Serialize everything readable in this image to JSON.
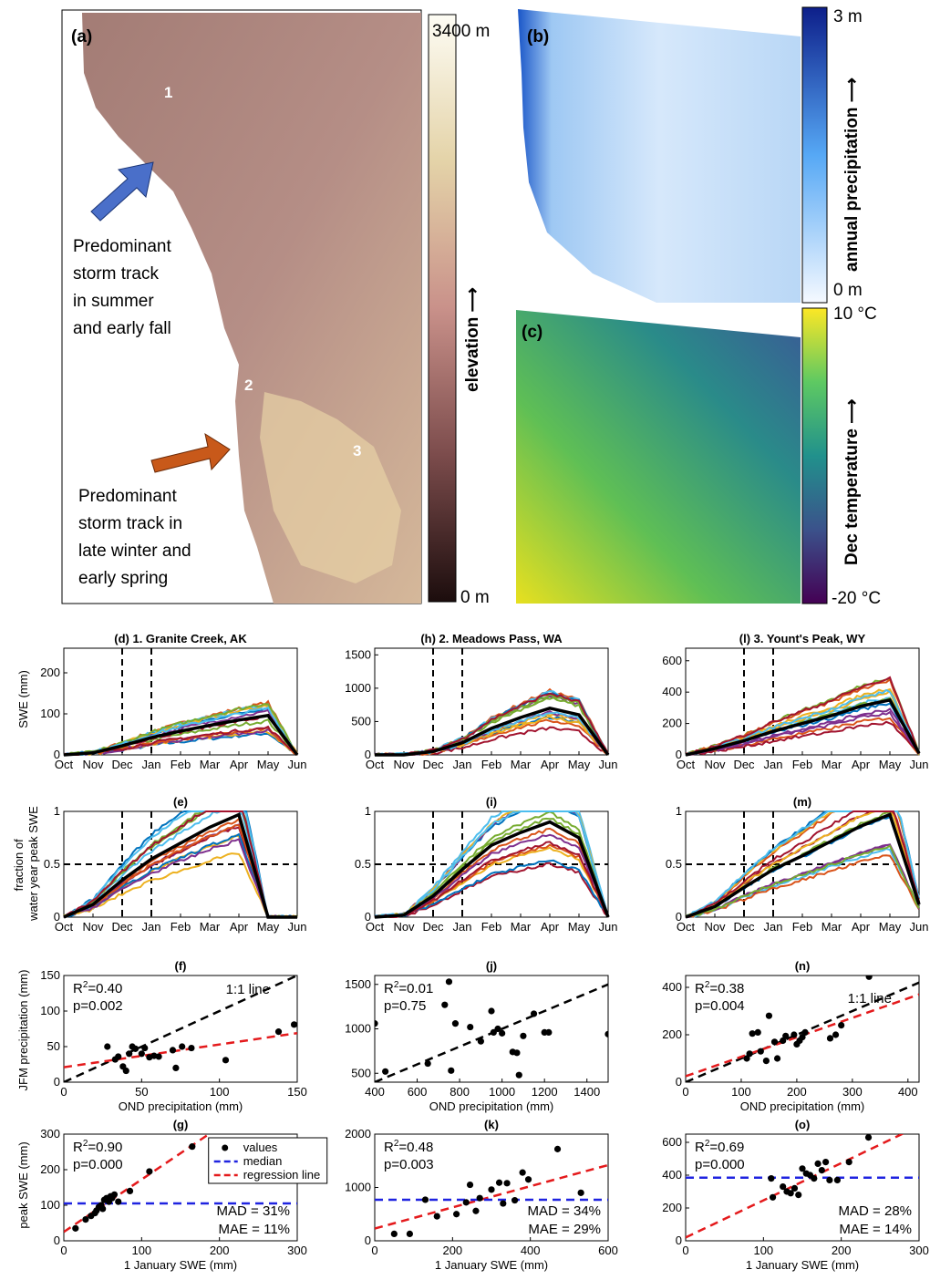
{
  "maps": {
    "a": {
      "label": "(a)",
      "sites": [
        "1",
        "2",
        "3"
      ],
      "summer_text": [
        "Predominant",
        "storm track",
        "in summer",
        "and early fall"
      ],
      "winter_text": [
        "Predominant",
        "storm track in",
        "late winter and",
        "early spring"
      ],
      "colorbar": {
        "top": "3400 m",
        "bottom": "0 m",
        "title": "elevation ⟶"
      }
    },
    "b": {
      "label": "(b)",
      "colorbar": {
        "top": "3 m",
        "bottom": "0 m",
        "title": "annual precipitation ⟶"
      }
    },
    "c": {
      "label": "(c)",
      "colorbar": {
        "top": "10 °C",
        "bottom": "-20 °C",
        "title": "Dec  temperature ⟶"
      }
    }
  },
  "colors": {
    "black": "#000000",
    "red": "#e41a1c",
    "blue": "#1f23e0",
    "series": [
      "#0072bd",
      "#d95319",
      "#edb120",
      "#7e2f8e",
      "#77ac30",
      "#4dbeee",
      "#a2142f"
    ]
  },
  "months": [
    "Oct",
    "Nov",
    "Dec",
    "Jan",
    "Feb",
    "Mar",
    "Apr",
    "May",
    "Jun"
  ],
  "labels": {
    "swe_y": "SWE (mm)",
    "frac_y1": "fraction of",
    "frac_y2": "water year peak SWE",
    "jfm_y": "JFM precipitation (mm)",
    "ond_x": "OND precipitation (mm)",
    "peak_y": "peak SWE (mm)",
    "jan_x": "1 January SWE (mm)"
  },
  "chart_data": [
    {
      "id": "d",
      "type": "line",
      "title": "(d) 1. Granite Creek, AK",
      "ylabel": "SWE (mm)",
      "x_ticks": [
        "Oct",
        "Nov",
        "Dec",
        "Jan",
        "Feb",
        "Mar",
        "Apr",
        "May",
        "Jun"
      ],
      "ylim": [
        0,
        260
      ],
      "y_ticks": [
        0,
        100,
        200
      ],
      "series": [
        {
          "values": [
            0,
            5,
            22,
            42,
            58,
            72,
            85,
            96,
            0
          ]
        }
      ]
    },
    {
      "id": "h",
      "type": "line",
      "title": "(h) 2. Meadows Pass, WA",
      "x_ticks": [
        "Oct",
        "Nov",
        "Dec",
        "Jan",
        "Feb",
        "Mar",
        "Apr",
        "May",
        "Jun"
      ],
      "ylim": [
        0,
        1600
      ],
      "y_ticks": [
        0,
        500,
        1000,
        1500
      ],
      "series": [
        {
          "values": [
            0,
            0,
            50,
            180,
            400,
            560,
            700,
            600,
            0
          ]
        }
      ]
    },
    {
      "id": "l",
      "type": "line",
      "title": "(l) 3. Yount's Peak, WY",
      "x_ticks": [
        "Oct",
        "Nov",
        "Dec",
        "Jan",
        "Feb",
        "Mar",
        "Apr",
        "May",
        "Jun"
      ],
      "ylim": [
        0,
        680
      ],
      "y_ticks": [
        0,
        200,
        400,
        600
      ],
      "series": [
        {
          "values": [
            0,
            40,
            90,
            150,
            200,
            250,
            310,
            350,
            10
          ]
        }
      ]
    },
    {
      "id": "e",
      "type": "line",
      "title": "(e)",
      "ylim": [
        0,
        1
      ],
      "y_ticks": [
        0,
        0.5,
        1
      ],
      "x_ticks": [
        "Oct",
        "Nov",
        "Dec",
        "Jan",
        "Feb",
        "Mar",
        "Apr",
        "May",
        "Jun"
      ],
      "series": [
        {
          "values": [
            0,
            0.12,
            0.35,
            0.55,
            0.7,
            0.85,
            0.97,
            0,
            0
          ]
        }
      ]
    },
    {
      "id": "i",
      "type": "line",
      "title": "(i)",
      "ylim": [
        0,
        1
      ],
      "y_ticks": [
        0,
        0.5,
        1
      ],
      "x_ticks": [
        "Oct",
        "Nov",
        "Dec",
        "Jan",
        "Feb",
        "Mar",
        "Apr",
        "May",
        "Jun"
      ],
      "series": [
        {
          "values": [
            0,
            0.02,
            0.2,
            0.45,
            0.68,
            0.8,
            0.9,
            0.75,
            0
          ]
        }
      ]
    },
    {
      "id": "m",
      "type": "line",
      "title": "(m)",
      "ylim": [
        0,
        1
      ],
      "y_ticks": [
        0,
        0.5,
        1
      ],
      "x_ticks": [
        "Oct",
        "Nov",
        "Dec",
        "Jan",
        "Feb",
        "Mar",
        "Apr",
        "May",
        "Jun"
      ],
      "series": [
        {
          "values": [
            0,
            0.1,
            0.28,
            0.45,
            0.58,
            0.72,
            0.86,
            0.97,
            0.12
          ]
        }
      ]
    },
    {
      "id": "f",
      "type": "scatter",
      "title": "(f)",
      "ylabel": "JFM precipitation (mm)",
      "xlabel": "OND precipitation (mm)",
      "xlim": [
        0,
        150
      ],
      "ylim": [
        0,
        150
      ],
      "x_ticks": [
        0,
        50,
        100,
        150
      ],
      "y_ticks": [
        0,
        50,
        100,
        150
      ],
      "r2": "R",
      "r2_sup": "2",
      "r2_val": "=0.40",
      "p": "p=0.002",
      "note": "1:1 line",
      "points": [
        [
          28,
          50
        ],
        [
          33,
          32
        ],
        [
          35,
          36
        ],
        [
          38,
          22
        ],
        [
          40,
          16
        ],
        [
          42,
          40
        ],
        [
          44,
          50
        ],
        [
          46,
          47
        ],
        [
          50,
          40
        ],
        [
          52,
          48
        ],
        [
          55,
          35
        ],
        [
          58,
          37
        ],
        [
          61,
          36
        ],
        [
          70,
          45
        ],
        [
          72,
          20
        ],
        [
          76,
          50
        ],
        [
          82,
          48
        ],
        [
          104,
          31
        ],
        [
          138,
          71
        ],
        [
          148,
          81
        ]
      ],
      "regression": [
        [
          0,
          21
        ],
        [
          150,
          69
        ]
      ],
      "one_to_one": [
        [
          0,
          0
        ],
        [
          150,
          150
        ]
      ]
    },
    {
      "id": "j",
      "type": "scatter",
      "title": "(j)",
      "xlabel": "OND precipitation (mm)",
      "xlim": [
        400,
        1500
      ],
      "ylim": [
        400,
        1600
      ],
      "x_ticks": [
        400,
        600,
        800,
        1000,
        1200,
        1400
      ],
      "y_ticks": [
        500,
        1000,
        1500
      ],
      "r2": "R",
      "r2_sup": "2",
      "r2_val": "=0.01",
      "p": "p=0.75",
      "points": [
        [
          400,
          1060
        ],
        [
          450,
          520
        ],
        [
          650,
          610
        ],
        [
          730,
          1270
        ],
        [
          750,
          1530
        ],
        [
          760,
          530
        ],
        [
          780,
          1060
        ],
        [
          850,
          1020
        ],
        [
          900,
          860
        ],
        [
          950,
          1200
        ],
        [
          960,
          960
        ],
        [
          980,
          1000
        ],
        [
          1000,
          950
        ],
        [
          1050,
          740
        ],
        [
          1070,
          730
        ],
        [
          1080,
          480
        ],
        [
          1100,
          920
        ],
        [
          1150,
          1170
        ],
        [
          1200,
          960
        ],
        [
          1220,
          960
        ],
        [
          1500,
          940
        ]
      ],
      "one_to_one": [
        [
          400,
          400
        ],
        [
          1500,
          1500
        ]
      ]
    },
    {
      "id": "n",
      "type": "scatter",
      "title": "(n)",
      "xlabel": "OND precipitation (mm)",
      "xlim": [
        0,
        420
      ],
      "ylim": [
        0,
        450
      ],
      "x_ticks": [
        0,
        100,
        200,
        300,
        400
      ],
      "y_ticks": [
        0,
        200,
        400
      ],
      "r2": "R",
      "r2_sup": "2",
      "r2_val": "=0.38",
      "p": "p=0.004",
      "note": "1:1 line",
      "points": [
        [
          110,
          100
        ],
        [
          115,
          120
        ],
        [
          120,
          205
        ],
        [
          130,
          210
        ],
        [
          135,
          130
        ],
        [
          145,
          90
        ],
        [
          150,
          280
        ],
        [
          160,
          170
        ],
        [
          165,
          100
        ],
        [
          175,
          175
        ],
        [
          180,
          195
        ],
        [
          195,
          200
        ],
        [
          200,
          160
        ],
        [
          205,
          175
        ],
        [
          210,
          190
        ],
        [
          215,
          210
        ],
        [
          260,
          185
        ],
        [
          270,
          200
        ],
        [
          280,
          240
        ],
        [
          330,
          445
        ]
      ],
      "regression": [
        [
          0,
          25
        ],
        [
          420,
          370
        ]
      ],
      "one_to_one": [
        [
          0,
          0
        ],
        [
          420,
          420
        ]
      ]
    },
    {
      "id": "g",
      "type": "scatter",
      "title": "(g)",
      "ylabel": "peak SWE (mm)",
      "xlabel": "1 January SWE (mm)",
      "xlim": [
        0,
        300
      ],
      "ylim": [
        0,
        300
      ],
      "x_ticks": [
        0,
        100,
        200,
        300
      ],
      "y_ticks": [
        0,
        100,
        200,
        300
      ],
      "r2": "R",
      "r2_sup": "2",
      "r2_val": "=0.90",
      "p": "p=0.000",
      "mad": "MAD = 31%",
      "mae": "MAE = 11%",
      "legend": [
        "values",
        "median",
        "regression line"
      ],
      "points": [
        [
          15,
          35
        ],
        [
          28,
          60
        ],
        [
          35,
          70
        ],
        [
          40,
          78
        ],
        [
          42,
          85
        ],
        [
          45,
          95
        ],
        [
          48,
          100
        ],
        [
          50,
          90
        ],
        [
          52,
          115
        ],
        [
          55,
          120
        ],
        [
          58,
          110
        ],
        [
          60,
          125
        ],
        [
          62,
          120
        ],
        [
          65,
          130
        ],
        [
          70,
          110
        ],
        [
          85,
          140
        ],
        [
          110,
          195
        ],
        [
          165,
          265
        ]
      ],
      "regression": [
        [
          0,
          25
        ],
        [
          200,
          320
        ]
      ],
      "median": 105
    },
    {
      "id": "k",
      "type": "scatter",
      "title": "(k)",
      "xlabel": "1 January SWE (mm)",
      "xlim": [
        0,
        600
      ],
      "ylim": [
        0,
        2000
      ],
      "x_ticks": [
        0,
        200,
        400,
        600
      ],
      "y_ticks": [
        0,
        1000,
        2000
      ],
      "r2": "R",
      "r2_sup": "2",
      "r2_val": "=0.48",
      "p": "p=0.003",
      "mad": "MAD = 34%",
      "mae": "MAE = 29%",
      "points": [
        [
          50,
          130
        ],
        [
          90,
          130
        ],
        [
          130,
          770
        ],
        [
          160,
          460
        ],
        [
          210,
          500
        ],
        [
          235,
          720
        ],
        [
          245,
          1050
        ],
        [
          260,
          560
        ],
        [
          270,
          800
        ],
        [
          300,
          960
        ],
        [
          320,
          1090
        ],
        [
          330,
          700
        ],
        [
          340,
          1080
        ],
        [
          360,
          760
        ],
        [
          380,
          1280
        ],
        [
          395,
          1150
        ],
        [
          470,
          1720
        ],
        [
          530,
          900
        ]
      ],
      "regression": [
        [
          0,
          230
        ],
        [
          600,
          1420
        ]
      ],
      "median": 770
    },
    {
      "id": "o",
      "type": "scatter",
      "title": "(o)",
      "xlabel": "1 January SWE (mm)",
      "xlim": [
        0,
        300
      ],
      "ylim": [
        0,
        650
      ],
      "x_ticks": [
        0,
        100,
        200,
        300
      ],
      "y_ticks": [
        0,
        200,
        400,
        600
      ],
      "r2": "R",
      "r2_sup": "2",
      "r2_val": "=0.69",
      "p": "p=0.000",
      "mad": "MAD = 28%",
      "mae": "MAE = 14%",
      "points": [
        [
          110,
          380
        ],
        [
          112,
          265
        ],
        [
          125,
          330
        ],
        [
          130,
          300
        ],
        [
          135,
          290
        ],
        [
          140,
          320
        ],
        [
          145,
          280
        ],
        [
          150,
          440
        ],
        [
          155,
          410
        ],
        [
          160,
          400
        ],
        [
          165,
          380
        ],
        [
          170,
          470
        ],
        [
          175,
          430
        ],
        [
          180,
          480
        ],
        [
          185,
          370
        ],
        [
          195,
          370
        ],
        [
          210,
          480
        ],
        [
          235,
          630
        ]
      ],
      "regression": [
        [
          0,
          20
        ],
        [
          300,
          700
        ]
      ],
      "median": 385
    }
  ]
}
